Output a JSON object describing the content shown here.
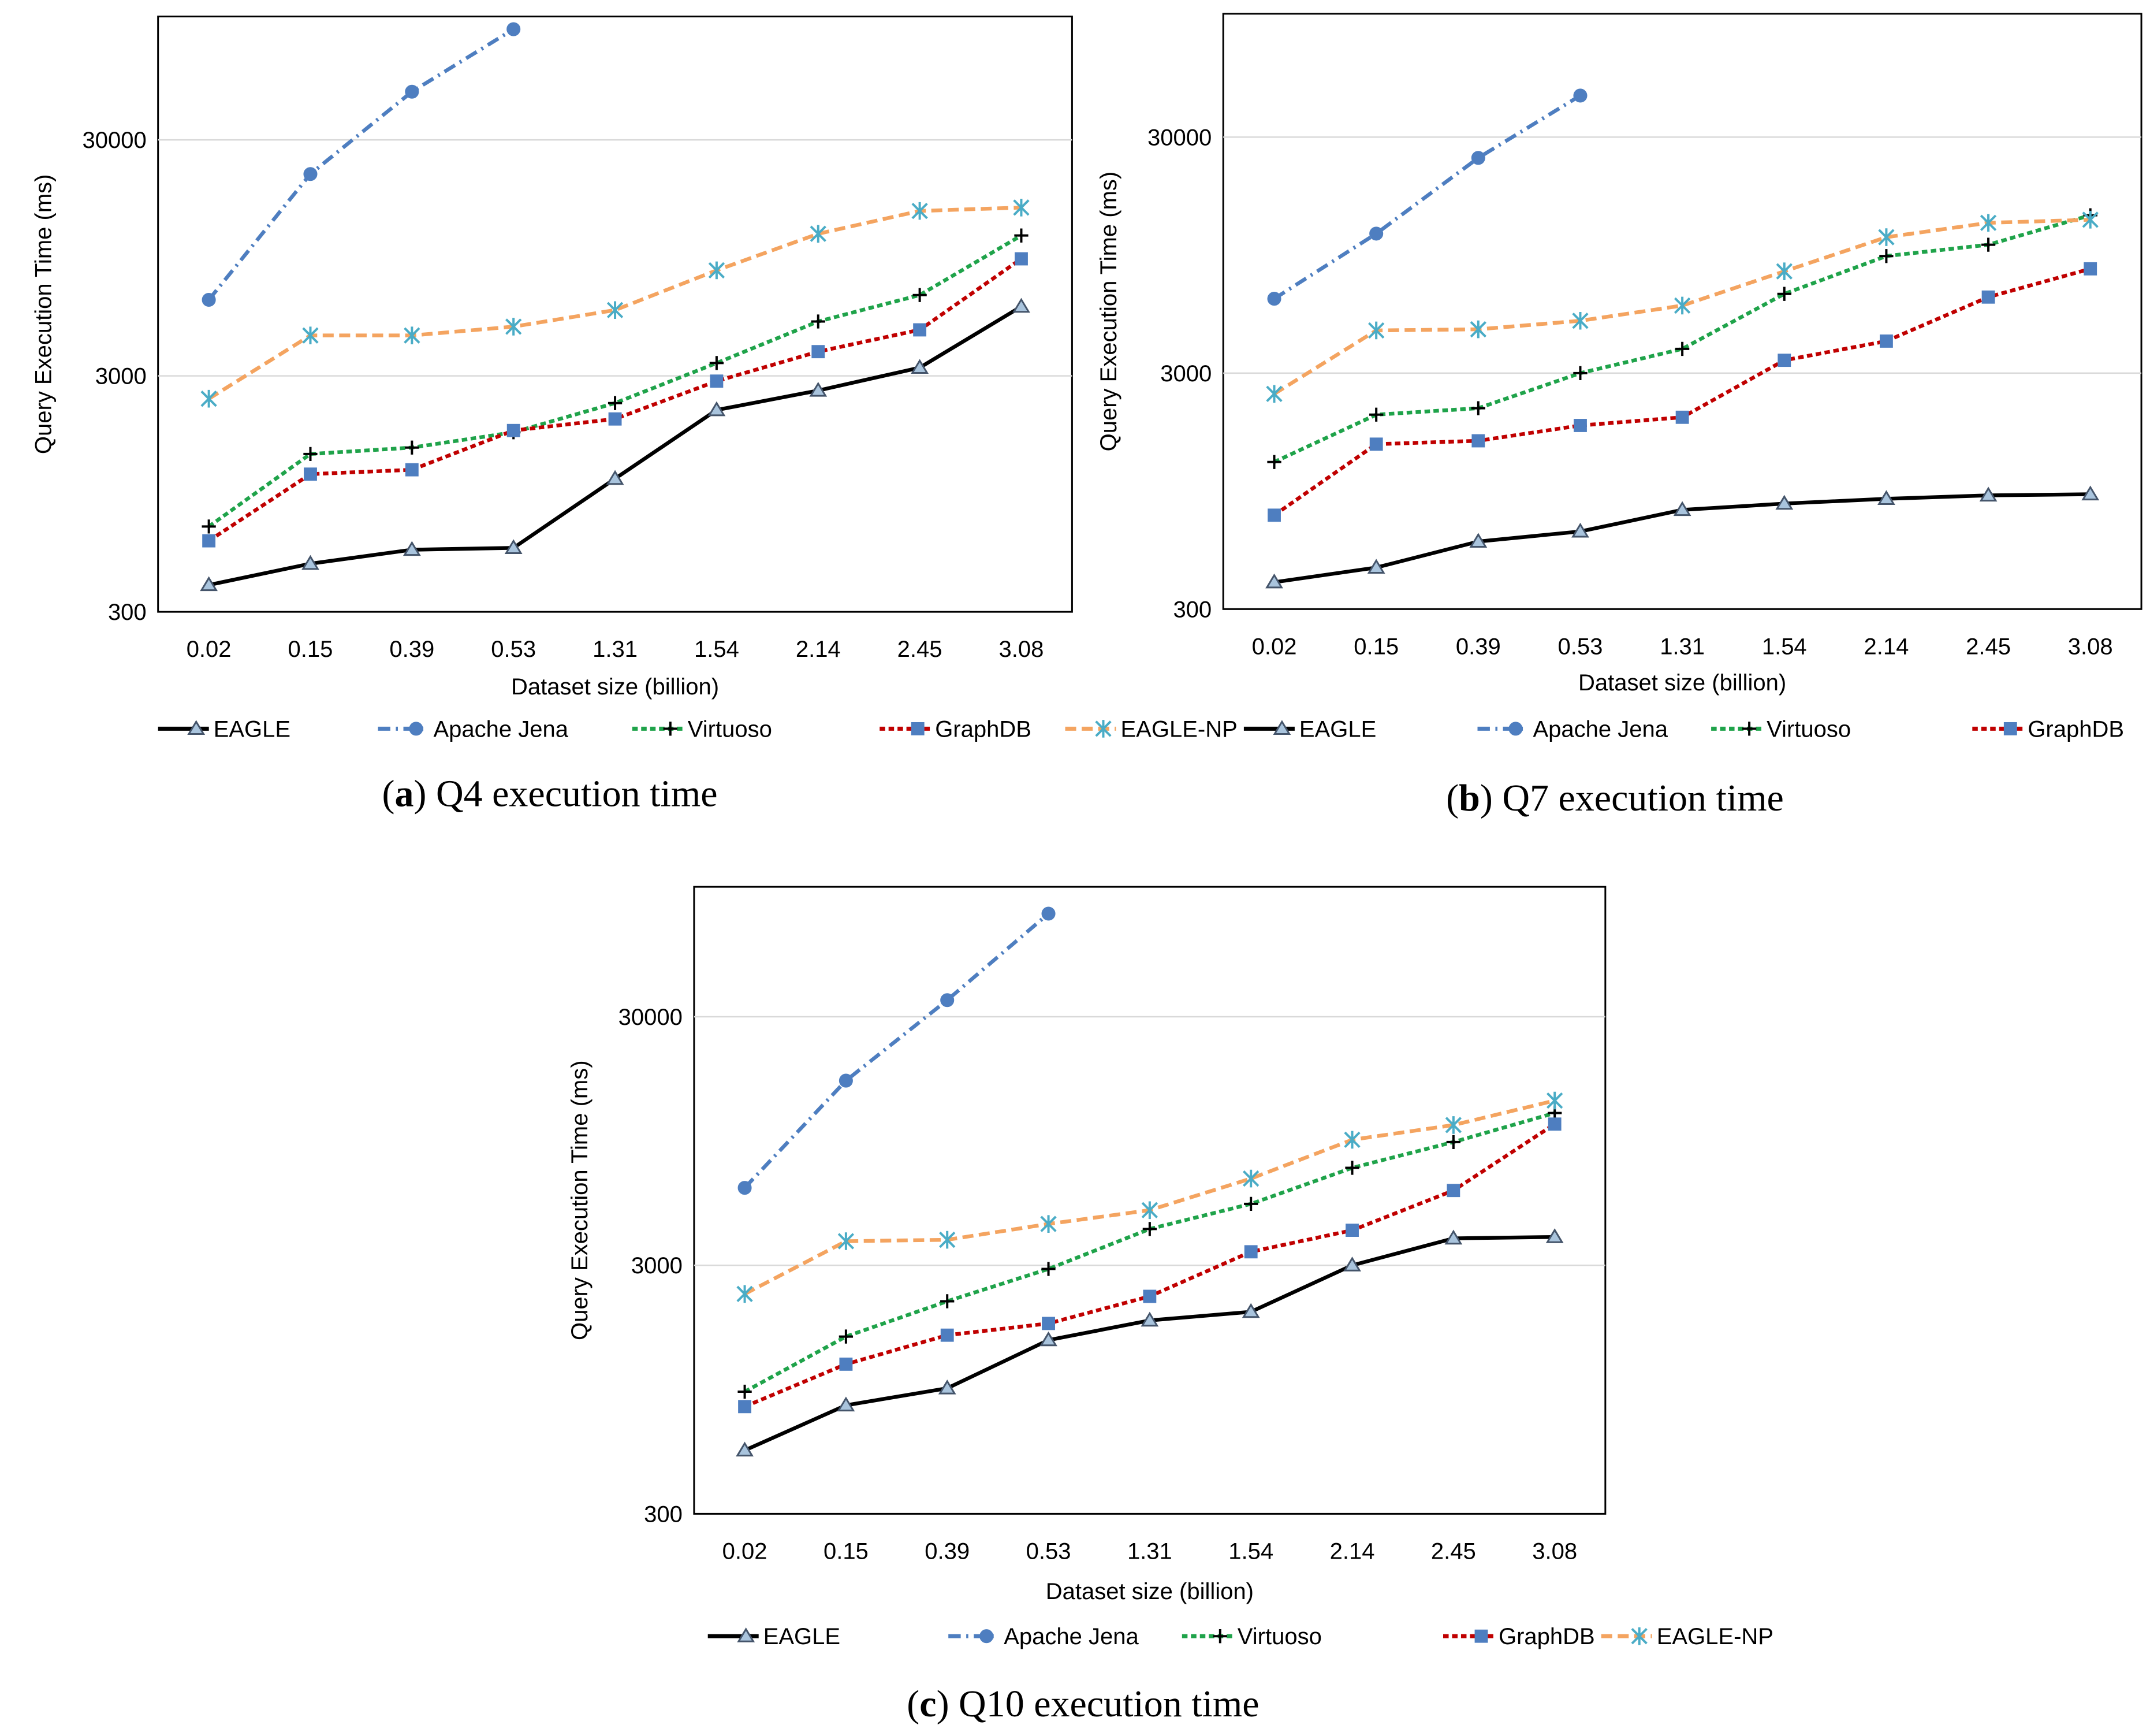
{
  "figure": {
    "series_styles": [
      {
        "name": "EAGLE",
        "color": "#000000",
        "marker": "triangle",
        "dash": "none",
        "marker_fill": "#a9c4dd",
        "marker_stroke": "#44546a"
      },
      {
        "name": "Apache Jena",
        "color": "#4e7ec0",
        "marker": "circle",
        "dash": "dashdot",
        "marker_fill": "#4e7ec0",
        "marker_stroke": "#4e7ec0"
      },
      {
        "name": "Virtuoso",
        "color": "#1fa34a",
        "marker": "plus",
        "dash": "dash",
        "marker_fill": "#000000",
        "marker_stroke": "#000000"
      },
      {
        "name": "GraphDB",
        "color": "#c00000",
        "marker": "square",
        "dash": "dash",
        "marker_fill": "#4e7ec0",
        "marker_stroke": "#4e7ec0"
      },
      {
        "name": "EAGLE-NP",
        "color": "#f4a460",
        "marker": "star",
        "dash": "longdash",
        "marker_fill": "#4aacc6",
        "marker_stroke": "#4aacc6"
      }
    ]
  },
  "chart_data": [
    {
      "id": "a",
      "type": "line",
      "caption_letter": "a",
      "caption_text": "Q4 execution time",
      "caption_open": "(",
      "caption_close": ")",
      "xlabel": "Dataset size (billion)",
      "ylabel": "Query Execution Time (ms)",
      "yscale": "log10",
      "ylim": [
        300,
        100000
      ],
      "yticks": [
        "300",
        "3000",
        "30000"
      ],
      "ytick_values": [
        300,
        3000,
        30000
      ],
      "categories": [
        "0.02",
        "0.15",
        "0.39",
        "0.53",
        "1.31",
        "1.54",
        "2.14",
        "2.45",
        "3.08"
      ],
      "series": [
        {
          "name": "EAGLE",
          "values": [
            390,
            480,
            550,
            560,
            1100,
            2150,
            2600,
            3250,
            5900
          ]
        },
        {
          "name": "Apache Jena",
          "values": [
            6300,
            21500,
            48000,
            110000,
            null,
            null,
            null,
            null,
            null
          ]
        },
        {
          "name": "Virtuoso",
          "values": [
            690,
            1400,
            1490,
            1730,
            2300,
            3400,
            5100,
            6600,
            11800
          ]
        },
        {
          "name": "GraphDB",
          "values": [
            600,
            1150,
            1200,
            1760,
            1970,
            2850,
            3800,
            4700,
            9400
          ]
        },
        {
          "name": "EAGLE-NP",
          "values": [
            2400,
            4450,
            4450,
            4850,
            5700,
            8400,
            12000,
            15000,
            15500
          ]
        }
      ]
    },
    {
      "id": "b",
      "type": "line",
      "caption_letter": "b",
      "caption_text": "Q7 execution time",
      "caption_open": "(",
      "caption_close": ")",
      "xlabel": "Dataset size (billion)",
      "ylabel": "Query Execution Time (ms)",
      "yscale": "log10",
      "ylim": [
        300,
        100000
      ],
      "yticks": [
        "300",
        "3000",
        "30000"
      ],
      "ytick_values": [
        300,
        3000,
        30000
      ],
      "categories": [
        "0.02",
        "0.15",
        "0.39",
        "0.53",
        "1.31",
        "1.54",
        "2.14",
        "2.45",
        "3.08"
      ],
      "series": [
        {
          "name": "EAGLE",
          "values": [
            390,
            450,
            580,
            640,
            790,
            840,
            880,
            910,
            920
          ]
        },
        {
          "name": "Apache Jena",
          "values": [
            6200,
            11700,
            24500,
            45000,
            null,
            null,
            null,
            null,
            null
          ]
        },
        {
          "name": "Virtuoso",
          "values": [
            1260,
            2000,
            2130,
            3000,
            3800,
            6500,
            9400,
            10500,
            14000
          ]
        },
        {
          "name": "GraphDB",
          "values": [
            750,
            1500,
            1550,
            1800,
            1950,
            3400,
            4100,
            6300,
            8300
          ]
        },
        {
          "name": "EAGLE-NP",
          "values": [
            2450,
            4550,
            4600,
            5000,
            5800,
            8100,
            11300,
            13000,
            13400
          ]
        }
      ]
    },
    {
      "id": "c",
      "type": "line",
      "caption_letter": "c",
      "caption_text": "Q10 execution time",
      "caption_open": "(",
      "caption_close": ")",
      "xlabel": "Dataset size (billion)",
      "ylabel": "Query Execution Time (ms)",
      "yscale": "log10",
      "ylim": [
        300,
        100000
      ],
      "yticks": [
        "300",
        "3000",
        "30000"
      ],
      "ytick_values": [
        300,
        3000,
        30000
      ],
      "categories": [
        "0.02",
        "0.15",
        "0.39",
        "0.53",
        "1.31",
        "1.54",
        "2.14",
        "2.45",
        "3.08"
      ],
      "series": [
        {
          "name": "EAGLE",
          "values": [
            540,
            820,
            960,
            1500,
            1800,
            1950,
            3000,
            3850,
            3900
          ]
        },
        {
          "name": "Apache Jena",
          "values": [
            6150,
            16600,
            35000,
            78000,
            null,
            null,
            null,
            null,
            null
          ]
        },
        {
          "name": "Virtuoso",
          "values": [
            930,
            1550,
            2150,
            2900,
            4200,
            5300,
            7400,
            9400,
            12300
          ]
        },
        {
          "name": "GraphDB",
          "values": [
            810,
            1200,
            1570,
            1750,
            2250,
            3400,
            4150,
            6000,
            11100
          ]
        },
        {
          "name": "EAGLE-NP",
          "values": [
            2300,
            3750,
            3800,
            4400,
            5000,
            6700,
            9600,
            11000,
            13800
          ]
        }
      ]
    }
  ]
}
